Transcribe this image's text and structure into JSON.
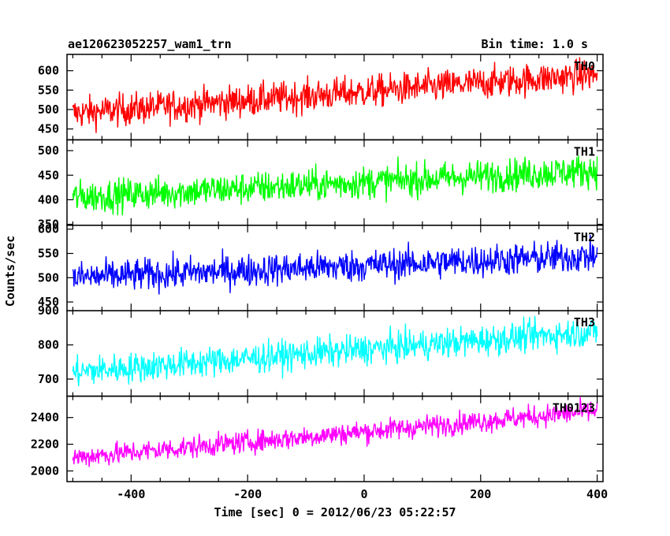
{
  "header": {
    "title": "ae120623052257_wam1_trn",
    "bin_time": "Bin time: 1.0 s"
  },
  "chart_data": {
    "type": "line",
    "xlabel": "Time [sec] 0 = 2012/06/23 05:22:57",
    "ylabel": "Counts/sec",
    "xlim": [
      -510,
      410
    ],
    "x_ticks": [
      -400,
      -200,
      0,
      200,
      400
    ],
    "x_start": -500,
    "x_end": 400,
    "panels": [
      {
        "name": "TH0",
        "color": "#ff0000",
        "ylim": [
          422,
          642
        ],
        "yticks": [
          450,
          500,
          550,
          600
        ],
        "trend_start": 490,
        "trend_end": 590,
        "noise": 30
      },
      {
        "name": "TH1",
        "color": "#00ff00",
        "ylim": [
          348,
          522
        ],
        "yticks": [
          350,
          400,
          450,
          500
        ],
        "trend_start": 405,
        "trend_end": 460,
        "noise": 24
      },
      {
        "name": "TH2",
        "color": "#0000ff",
        "ylim": [
          432,
          608
        ],
        "yticks": [
          450,
          500,
          550,
          600
        ],
        "trend_start": 500,
        "trend_end": 545,
        "noise": 24
      },
      {
        "name": "TH3",
        "color": "#00ffff",
        "ylim": [
          650,
          900
        ],
        "yticks": [
          700,
          800,
          900
        ],
        "trend_start": 720,
        "trend_end": 840,
        "noise": 32
      },
      {
        "name": "TH0123",
        "color": "#ff00ff",
        "ylim": [
          1920,
          2560
        ],
        "yticks": [
          2000,
          2200,
          2400
        ],
        "trend_start": 2100,
        "trend_end": 2450,
        "noise": 60
      }
    ]
  }
}
